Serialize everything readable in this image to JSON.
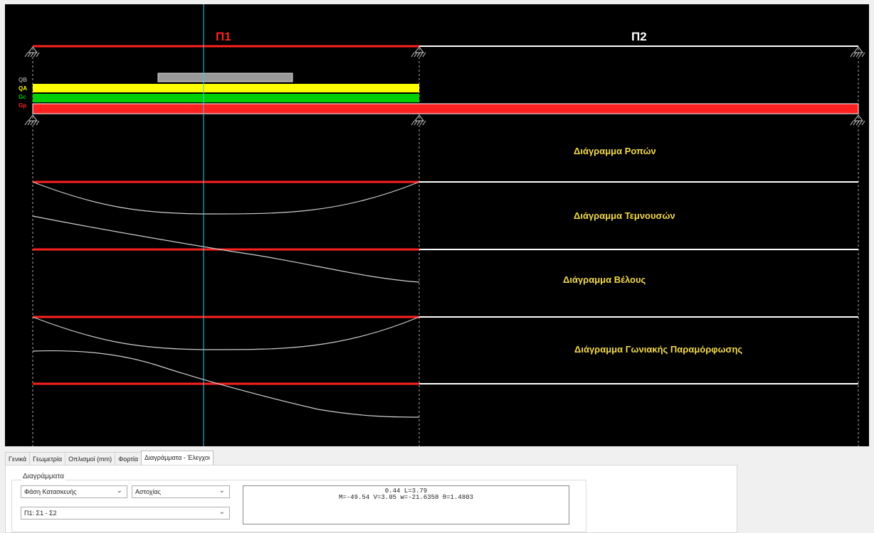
{
  "beam": {
    "spans": [
      {
        "label": "Π1",
        "color": "#ff2020"
      },
      {
        "label": "Π2",
        "color": "#ffffff"
      }
    ],
    "loads": [
      {
        "label": "QB",
        "color": "#9a9a9a"
      },
      {
        "label": "QA",
        "color": "#ffff00"
      },
      {
        "label": "Gc",
        "color": "#00d000"
      },
      {
        "label": "Gp",
        "color": "#ff2020"
      }
    ],
    "diagrams": [
      {
        "title": "Διάγραμμα Ροπών"
      },
      {
        "title": "Διάγραμμα Τεμνουσών"
      },
      {
        "title": "Διάγραμμα Βέλους"
      },
      {
        "title": "Διάγραμμα Γωνιακής Παραμόρφωσης"
      }
    ],
    "cursor_color": "#3fc8e8",
    "label_color": "#f2d94a"
  },
  "tabs": [
    {
      "label": "Γενικά",
      "active": false
    },
    {
      "label": "Γεωμετρία",
      "active": false
    },
    {
      "label": "Οπλισμοί (mm)",
      "active": false
    },
    {
      "label": "Φορτία",
      "active": false
    },
    {
      "label": "Διαγράμματα - Έλεγχοι",
      "active": true
    }
  ],
  "panel": {
    "group_title": "Διαγράμματα",
    "phase_select": "Φάση Κατασκευής",
    "state_select": "Αστοχίας",
    "span_select": "Π1: Σ1 - Σ2",
    "info_line1": "0.44 L=3.79",
    "info_line2": "M=-49.54 V=3.05 w=-21.6358 θ=1.4803"
  }
}
